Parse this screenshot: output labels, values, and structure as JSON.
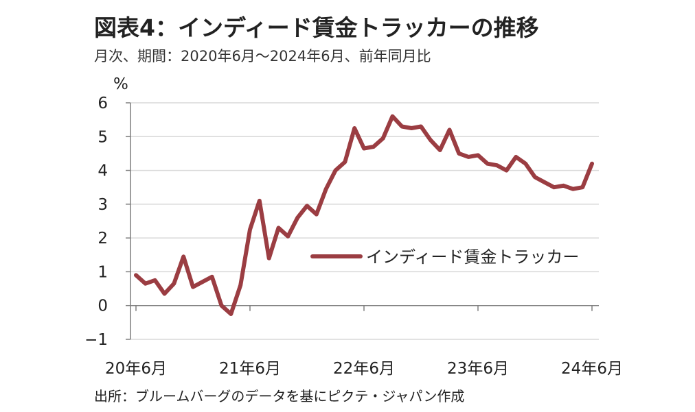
{
  "title": "図表4：インディード賃金トラッカーの推移",
  "subtitle": "月次、期間：2020年6月～2024年6月、前年同月比",
  "source": "出所：ブルームバーグのデータを基にピクテ・ジャパン作成",
  "colors": {
    "series": "#9b3d42",
    "grid": "#d9d9d9",
    "axis": "#7f7f7f"
  },
  "chart_data": {
    "type": "line",
    "ylabel": "%",
    "ylim": [
      -1,
      6
    ],
    "yticks": [
      "6",
      "5",
      "4",
      "3",
      "2",
      "1",
      "0",
      "−1"
    ],
    "ytick_values": [
      6,
      5,
      4,
      3,
      2,
      1,
      0,
      -1
    ],
    "xticks": [
      "20年6月",
      "21年6月",
      "22年6月",
      "23年6月",
      "24年6月"
    ],
    "xtick_months": [
      0,
      12,
      24,
      36,
      48
    ],
    "grid": true,
    "legend_position": "center-right",
    "series": [
      {
        "name": "インディード賃金トラッカー",
        "values": [
          0.9,
          0.65,
          0.75,
          0.35,
          0.65,
          1.45,
          0.55,
          0.7,
          0.85,
          0.0,
          -0.25,
          0.6,
          2.25,
          3.1,
          1.4,
          2.3,
          2.05,
          2.6,
          2.95,
          2.7,
          3.45,
          4.0,
          4.25,
          5.25,
          4.65,
          4.7,
          4.95,
          5.6,
          5.3,
          5.25,
          5.3,
          4.9,
          4.6,
          5.2,
          4.5,
          4.4,
          4.45,
          4.2,
          4.15,
          4.0,
          4.4,
          4.2,
          3.8,
          3.65,
          3.5,
          3.55,
          3.45,
          3.5,
          4.2
        ]
      }
    ]
  }
}
